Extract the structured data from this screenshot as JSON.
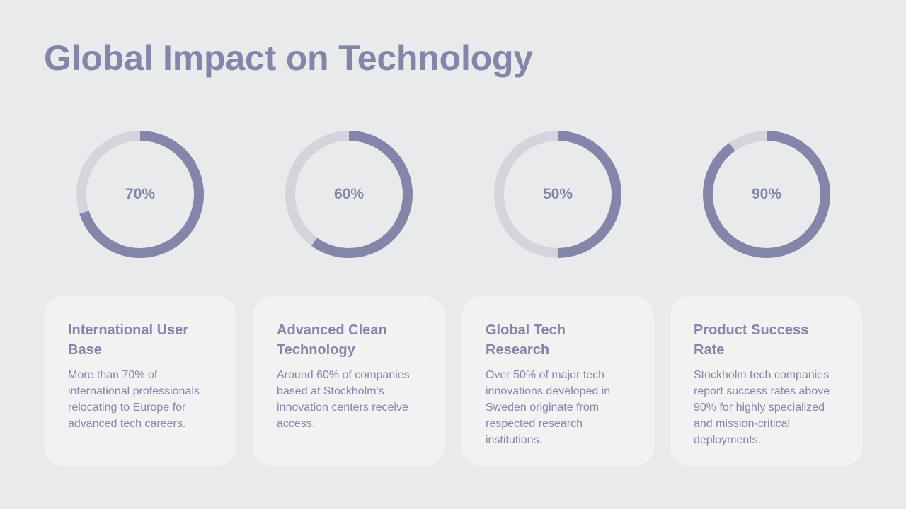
{
  "page": {
    "title": "Global Impact on Technology"
  },
  "colors": {
    "background": "#e9eaec",
    "accent": "#8386a8",
    "track": "#d4d5dc",
    "card": "#f2f2f3"
  },
  "chart_data": {
    "type": "pie",
    "categories": [
      "International User Base",
      "Advanced Clean Technology",
      "Global Tech Research",
      "Product Success Rate"
    ],
    "values": [
      70,
      60,
      50,
      90
    ],
    "labels": [
      "70%",
      "60%",
      "50%",
      "90%"
    ],
    "unit": "%",
    "max": 100
  },
  "cards": [
    {
      "title": "International User Base",
      "text": "More than 70% of international professionals relocating to Europe for advanced tech careers."
    },
    {
      "title": "Advanced Clean Technology",
      "text": "Around 60% of companies based at Stockholm's innovation centers receive access."
    },
    {
      "title": "Global Tech Research",
      "text": "Over 50% of major tech innovations developed in Sweden originate from respected research institutions."
    },
    {
      "title": "Product Success Rate",
      "text": "Stockholm tech companies report success rates above 90% for highly specialized and mission-critical deployments."
    }
  ]
}
